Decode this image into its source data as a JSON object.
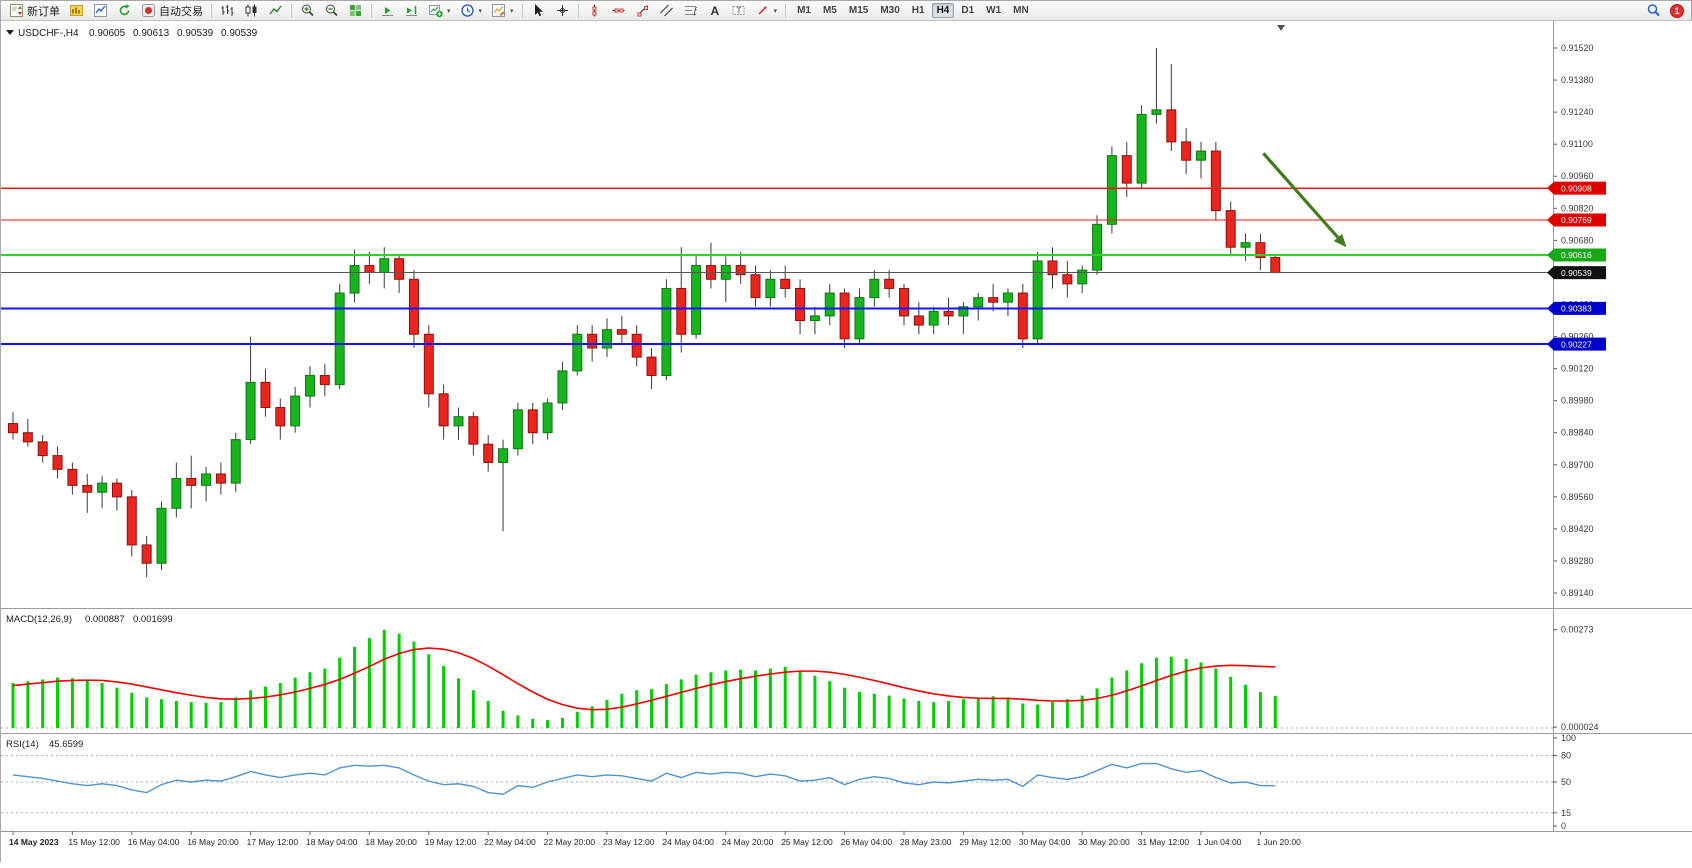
{
  "toolbar": {
    "new_order_label": "新订单",
    "autotrading_label": "自动交易",
    "timeframes": [
      "M1",
      "M5",
      "M15",
      "M30",
      "H1",
      "H4",
      "D1",
      "W1",
      "MN"
    ],
    "active_timeframe": "H4",
    "notification_count": "1"
  },
  "chart_header": {
    "symbol_period": "USDCHF-,H4",
    "open": "0.90605",
    "high": "0.90613",
    "low": "0.90539",
    "close": "0.90539"
  },
  "main_chart": {
    "colors": {
      "up": "#18b41e",
      "down": "#e8261f",
      "wick": "#3a3a3a",
      "background": "#ffffff"
    },
    "price_scale": {
      "labels": [
        "0.91520",
        "0.91380",
        "0.91240",
        "0.91100",
        "0.90960",
        "0.90820",
        "0.90680",
        "0.90540",
        "0.90400",
        "0.90260",
        "0.90120",
        "0.89980",
        "0.89840",
        "0.89700",
        "0.89560",
        "0.89420",
        "0.89280",
        "0.89140"
      ]
    },
    "levels": [
      {
        "label": "0.90908",
        "price": 0.90908,
        "color": "#ff1414",
        "label_bg": "#e00000",
        "line_width": 1.3
      },
      {
        "label": "0.90769",
        "price": 0.90769,
        "color": "#ff1414",
        "label_bg": "#e00000",
        "line_width": 1.3
      },
      {
        "label": "0.90616",
        "price": 0.90616,
        "color": "#2fd12f",
        "label_bg": "#17a817",
        "line_width": 2
      },
      {
        "label": "0.90383",
        "price": 0.90383,
        "color": "#1414ff",
        "label_bg": "#0000cd",
        "line_width": 2
      },
      {
        "label": "0.90227",
        "price": 0.90227,
        "color": "#1414ff",
        "label_bg": "#0000cd",
        "line_width": 2
      }
    ],
    "bid_marker": {
      "label": "0.90539",
      "price": 0.90539,
      "color": "#555555",
      "label_bg": "#101010"
    },
    "annotation_arrow": {
      "color": "#3f7d1c",
      "from_bar": 84.2,
      "from_price": 0.9106,
      "to_bar": 89.8,
      "to_price": 0.9065
    }
  },
  "macd_panel": {
    "title": "MACD(12,26,9)",
    "value_main": "0.000887",
    "value_signal": "0.001699",
    "scale_max_label": "0.00273",
    "scale_max_value": 0.00273,
    "scale_min_label": "0.000024",
    "scale_min_value": 2.4e-05
  },
  "rsi_panel": {
    "title": "RSI(14)",
    "value": "45.6599",
    "scale_labels": [
      "100",
      "80",
      "50",
      "15",
      "0"
    ],
    "levels": [
      80,
      50,
      15
    ]
  },
  "chart_data": [
    {
      "type": "candlestick",
      "title": "USDCHF- H4",
      "ylim": [
        0.8914,
        0.9156
      ],
      "label_every_n_bars": 4,
      "x_labels": [
        "14 May 2023",
        "15 May 12:00",
        "16 May 04:00",
        "16 May 20:00",
        "17 May 12:00",
        "18 May 04:00",
        "18 May 20:00",
        "19 May 12:00",
        "22 May 04:00",
        "22 May 20:00",
        "23 May 12:00",
        "24 May 04:00",
        "24 May 20:00",
        "25 May 12:00",
        "26 May 04:00",
        "28 May 23:00",
        "29 May 12:00",
        "30 May 04:00",
        "30 May 20:00",
        "31 May 12:00",
        "1 Jun 04:00",
        "1 Jun 20:00"
      ],
      "candles": [
        [
          0.8988,
          0.8993,
          0.8981,
          0.8984
        ],
        [
          0.8984,
          0.899,
          0.8978,
          0.898
        ],
        [
          0.898,
          0.8983,
          0.8971,
          0.8974
        ],
        [
          0.8974,
          0.8978,
          0.8964,
          0.8968
        ],
        [
          0.8968,
          0.8971,
          0.8957,
          0.8961
        ],
        [
          0.8961,
          0.8966,
          0.8949,
          0.8958
        ],
        [
          0.8958,
          0.8965,
          0.8951,
          0.8962
        ],
        [
          0.8962,
          0.8964,
          0.895,
          0.8956
        ],
        [
          0.8956,
          0.8959,
          0.893,
          0.8935
        ],
        [
          0.8935,
          0.8939,
          0.8921,
          0.8927
        ],
        [
          0.8927,
          0.8954,
          0.8924,
          0.8951
        ],
        [
          0.8951,
          0.8971,
          0.8947,
          0.8964
        ],
        [
          0.8964,
          0.8974,
          0.8951,
          0.8961
        ],
        [
          0.8961,
          0.8969,
          0.8954,
          0.8966
        ],
        [
          0.8966,
          0.8971,
          0.8957,
          0.8962
        ],
        [
          0.8962,
          0.8984,
          0.8958,
          0.8981
        ],
        [
          0.8981,
          0.9026,
          0.8979,
          0.9006
        ],
        [
          0.9006,
          0.9012,
          0.8991,
          0.8995
        ],
        [
          0.8995,
          0.8999,
          0.8981,
          0.8987
        ],
        [
          0.8987,
          0.9004,
          0.8984,
          0.9
        ],
        [
          0.9,
          0.9013,
          0.8995,
          0.9009
        ],
        [
          0.9009,
          0.9014,
          0.9,
          0.9005
        ],
        [
          0.9005,
          0.9049,
          0.9003,
          0.9045
        ],
        [
          0.9045,
          0.9064,
          0.9041,
          0.9057
        ],
        [
          0.9057,
          0.9063,
          0.9049,
          0.9054
        ],
        [
          0.9054,
          0.9065,
          0.9047,
          0.906
        ],
        [
          0.906,
          0.9062,
          0.9045,
          0.9051
        ],
        [
          0.9051,
          0.9055,
          0.9021,
          0.9027
        ],
        [
          0.9027,
          0.9031,
          0.8995,
          0.9001
        ],
        [
          0.9001,
          0.9005,
          0.8981,
          0.8987
        ],
        [
          0.8987,
          0.8995,
          0.8981,
          0.8991
        ],
        [
          0.8991,
          0.8993,
          0.8974,
          0.8979
        ],
        [
          0.8979,
          0.8983,
          0.8967,
          0.8971
        ],
        [
          0.8971,
          0.8981,
          0.8941,
          0.8977
        ],
        [
          0.8977,
          0.8997,
          0.8974,
          0.8994
        ],
        [
          0.8994,
          0.8997,
          0.8979,
          0.8984
        ],
        [
          0.8984,
          0.8999,
          0.8981,
          0.8997
        ],
        [
          0.8997,
          0.9015,
          0.8994,
          0.9011
        ],
        [
          0.9011,
          0.9031,
          0.9009,
          0.9027
        ],
        [
          0.9027,
          0.9031,
          0.9015,
          0.9021
        ],
        [
          0.9021,
          0.9034,
          0.9017,
          0.9029
        ],
        [
          0.9029,
          0.9035,
          0.9023,
          0.9027
        ],
        [
          0.9027,
          0.9031,
          0.9013,
          0.9017
        ],
        [
          0.9017,
          0.9021,
          0.9003,
          0.9009
        ],
        [
          0.9009,
          0.9051,
          0.9007,
          0.9047
        ],
        [
          0.9047,
          0.9065,
          0.9019,
          0.9027
        ],
        [
          0.9027,
          0.9061,
          0.9025,
          0.9057
        ],
        [
          0.9057,
          0.9067,
          0.9047,
          0.9051
        ],
        [
          0.9051,
          0.9061,
          0.9041,
          0.9057
        ],
        [
          0.9057,
          0.9063,
          0.9049,
          0.9053
        ],
        [
          0.9053,
          0.9057,
          0.9039,
          0.9043
        ],
        [
          0.9043,
          0.9055,
          0.9039,
          0.9051
        ],
        [
          0.9051,
          0.9057,
          0.9043,
          0.9047
        ],
        [
          0.9047,
          0.9051,
          0.9027,
          0.9033
        ],
        [
          0.9033,
          0.9039,
          0.9027,
          0.9035
        ],
        [
          0.9035,
          0.9049,
          0.9031,
          0.9045
        ],
        [
          0.9045,
          0.9047,
          0.9021,
          0.9025
        ],
        [
          0.9025,
          0.9047,
          0.9023,
          0.9043
        ],
        [
          0.9043,
          0.9055,
          0.9039,
          0.9051
        ],
        [
          0.9051,
          0.9055,
          0.9043,
          0.9047
        ],
        [
          0.9047,
          0.9049,
          0.9031,
          0.9035
        ],
        [
          0.9035,
          0.9041,
          0.9027,
          0.9031
        ],
        [
          0.9031,
          0.9039,
          0.9027,
          0.9037
        ],
        [
          0.9037,
          0.9043,
          0.9031,
          0.9035
        ],
        [
          0.9035,
          0.9041,
          0.9027,
          0.9039
        ],
        [
          0.9039,
          0.9045,
          0.9033,
          0.9043
        ],
        [
          0.9043,
          0.9049,
          0.9037,
          0.9041
        ],
        [
          0.9041,
          0.9047,
          0.9035,
          0.9045
        ],
        [
          0.9045,
          0.9049,
          0.9021,
          0.9025
        ],
        [
          0.9025,
          0.9063,
          0.9023,
          0.9059
        ],
        [
          0.9059,
          0.9065,
          0.9047,
          0.9053
        ],
        [
          0.9053,
          0.9059,
          0.9043,
          0.9049
        ],
        [
          0.9049,
          0.9057,
          0.9045,
          0.9055
        ],
        [
          0.9055,
          0.9079,
          0.9053,
          0.9075
        ],
        [
          0.9075,
          0.9109,
          0.9071,
          0.9105
        ],
        [
          0.9105,
          0.9111,
          0.9087,
          0.9093
        ],
        [
          0.9093,
          0.9127,
          0.9091,
          0.9123
        ],
        [
          0.9123,
          0.9152,
          0.9119,
          0.9125
        ],
        [
          0.9125,
          0.9145,
          0.9107,
          0.9111
        ],
        [
          0.9111,
          0.9117,
          0.9097,
          0.9103
        ],
        [
          0.9103,
          0.9111,
          0.9095,
          0.9107
        ],
        [
          0.9107,
          0.9111,
          0.9077,
          0.9081
        ],
        [
          0.9081,
          0.9085,
          0.9061,
          0.9065
        ],
        [
          0.9065,
          0.9071,
          0.9059,
          0.9067
        ],
        [
          0.9067,
          0.9071,
          0.9055,
          0.90605
        ],
        [
          0.90605,
          0.90613,
          0.90539,
          0.90539
        ]
      ]
    },
    {
      "type": "bar",
      "title": "MACD(12,26,9)",
      "ylim": [
        0,
        0.00273
      ],
      "histogram_color": "#00ce00",
      "values": [
        0.00125,
        0.0013,
        0.00135,
        0.0014,
        0.00138,
        0.00132,
        0.00125,
        0.00112,
        0.00098,
        0.00085,
        0.0008,
        0.00075,
        0.00072,
        0.0007,
        0.00072,
        0.00085,
        0.00105,
        0.00115,
        0.00125,
        0.0014,
        0.00155,
        0.00165,
        0.00195,
        0.00225,
        0.0025,
        0.00273,
        0.00262,
        0.0024,
        0.00205,
        0.00172,
        0.00138,
        0.00105,
        0.00075,
        0.00048,
        0.00035,
        0.00025,
        0.00022,
        0.00028,
        0.00045,
        0.0006,
        0.00078,
        0.00095,
        0.00105,
        0.00108,
        0.00122,
        0.00135,
        0.00148,
        0.00155,
        0.0016,
        0.00162,
        0.0016,
        0.00165,
        0.0017,
        0.00158,
        0.00145,
        0.0013,
        0.00112,
        0.001,
        0.00095,
        0.0009,
        0.00082,
        0.00075,
        0.00072,
        0.00075,
        0.0008,
        0.00085,
        0.00088,
        0.00085,
        0.00068,
        0.00065,
        0.00072,
        0.0008,
        0.0009,
        0.0011,
        0.0014,
        0.0016,
        0.0018,
        0.00195,
        0.00198,
        0.00192,
        0.00182,
        0.00165,
        0.00142,
        0.0012,
        0.001,
        0.000887
      ],
      "series": [
        {
          "name": "signal",
          "color": "#f20000",
          "values": [
            0.00118,
            0.00122,
            0.00126,
            0.0013,
            0.00132,
            0.00133,
            0.00132,
            0.00128,
            0.00122,
            0.00114,
            0.00106,
            0.00098,
            0.00091,
            0.00085,
            0.00081,
            0.0008,
            0.00082,
            0.00086,
            0.00092,
            0.001,
            0.0011,
            0.00121,
            0.00135,
            0.00152,
            0.00171,
            0.00191,
            0.00207,
            0.00218,
            0.00222,
            0.00219,
            0.00209,
            0.00193,
            0.00172,
            0.00148,
            0.00123,
            0.001,
            0.0008,
            0.00065,
            0.00055,
            0.00051,
            0.00052,
            0.00058,
            0.00067,
            0.00077,
            0.00088,
            0.00099,
            0.0011,
            0.0012,
            0.00129,
            0.00137,
            0.00144,
            0.0015,
            0.00155,
            0.00158,
            0.00158,
            0.00155,
            0.00149,
            0.00141,
            0.00132,
            0.00122,
            0.00112,
            0.00103,
            0.00095,
            0.00089,
            0.00085,
            0.00083,
            0.00082,
            0.00082,
            0.0008,
            0.00077,
            0.00075,
            0.00075,
            0.00077,
            0.00082,
            0.00091,
            0.00103,
            0.00117,
            0.00132,
            0.00146,
            0.00158,
            0.00167,
            0.00172,
            0.00174,
            0.00173,
            0.00171,
            0.001699
          ]
        }
      ]
    },
    {
      "type": "line",
      "title": "RSI(14)",
      "ylim": [
        0,
        100
      ],
      "line_color": "#4f93ce",
      "levels": [
        80,
        50,
        15
      ],
      "values": [
        58,
        56,
        54,
        51,
        48,
        46,
        48,
        46,
        41,
        38,
        47,
        52,
        50,
        52,
        51,
        56,
        62,
        58,
        55,
        58,
        60,
        58,
        66,
        69,
        68,
        69,
        66,
        58,
        51,
        47,
        48,
        45,
        38,
        36,
        46,
        44,
        50,
        54,
        58,
        56,
        58,
        57,
        54,
        51,
        60,
        55,
        61,
        59,
        61,
        60,
        56,
        59,
        57,
        51,
        52,
        55,
        47,
        53,
        56,
        54,
        49,
        47,
        50,
        49,
        51,
        53,
        52,
        53,
        45,
        58,
        55,
        53,
        56,
        63,
        70,
        66,
        71,
        71,
        65,
        61,
        63,
        55,
        49,
        50,
        46,
        45.66
      ]
    }
  ]
}
